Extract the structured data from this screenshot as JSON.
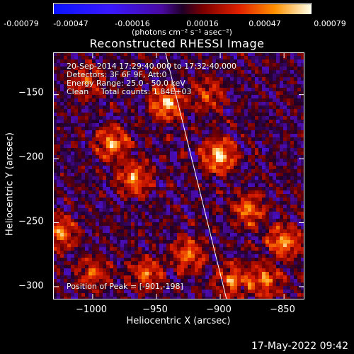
{
  "colorbar": {
    "ticks": [
      "-0.00079",
      "-0.00047",
      "-0.00016",
      "0.00016",
      "0.00047",
      "0.00079"
    ],
    "unit": "(photons cm⁻² s⁻¹ asec⁻²)"
  },
  "title": "Reconstructed RHESSI Image",
  "annotations": {
    "line1": "20-Sep-2014 17:29:40.000 to 17:32:40.000",
    "line2": "Detectors: 3F 6F 9F, Att:0",
    "line3": "Energy Range: 25.0 - 50.0 keV",
    "line4": "Clean     Total counts: 1.84E+03",
    "peak": "Position of Peak = [-901,-198]"
  },
  "timestamp": "17-May-2022 09:42",
  "chart_data": {
    "type": "heatmap",
    "title": "Reconstructed RHESSI Image",
    "xlabel": "Heliocentric X (arcsec)",
    "ylabel": "Heliocentric Y (arcsec)",
    "xlim": [
      -1031,
      -834
    ],
    "ylim": [
      -310,
      -117
    ],
    "xticks": [
      -1000,
      -950,
      -900,
      -850
    ],
    "yticks": [
      -150,
      -200,
      -250,
      -300
    ],
    "xtick_labels": [
      "−1000",
      "−950",
      "−900",
      "−850"
    ],
    "ytick_labels": [
      "−150",
      "−200",
      "−250",
      "−300"
    ],
    "colorbar_range": [
      -0.00079,
      0.00079
    ],
    "peak_position": [
      -901,
      -198
    ],
    "limb_line": [
      [
        -943,
        -117
      ],
      [
        -895,
        -310
      ]
    ],
    "bright_sources": [
      {
        "x": -901,
        "y": -198,
        "intensity": 1.0
      },
      {
        "x": -942,
        "y": -157,
        "intensity": 0.95
      },
      {
        "x": -985,
        "y": -188,
        "intensity": 0.8
      },
      {
        "x": -967,
        "y": -215,
        "intensity": 0.75
      },
      {
        "x": -878,
        "y": -240,
        "intensity": 0.7
      },
      {
        "x": -850,
        "y": -265,
        "intensity": 0.8
      },
      {
        "x": -865,
        "y": -295,
        "intensity": 0.7
      },
      {
        "x": -925,
        "y": -275,
        "intensity": 0.72
      },
      {
        "x": -890,
        "y": -295,
        "intensity": 0.7
      },
      {
        "x": -1025,
        "y": -258,
        "intensity": 0.7
      },
      {
        "x": -1000,
        "y": -290,
        "intensity": 0.55
      },
      {
        "x": -958,
        "y": -290,
        "intensity": 0.65
      },
      {
        "x": -910,
        "y": -150,
        "intensity": 0.5
      },
      {
        "x": -1005,
        "y": -140,
        "intensity": 0.55
      }
    ]
  }
}
